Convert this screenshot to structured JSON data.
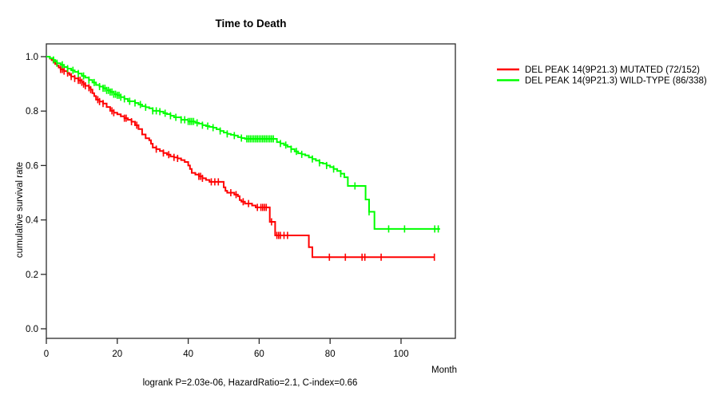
{
  "title": "Time to Death",
  "footer": "logrank P=2.03e-06, HazardRatio=2.1, C-index=0.66",
  "axes": {
    "y_label": "cumulative survival rate",
    "x_label": "Month",
    "y_tick_labels": [
      "1.0",
      "0.8",
      "0.6",
      "0.4",
      "0.2",
      "0.0"
    ],
    "x_tick_labels": [
      "0",
      "20",
      "40",
      "60",
      "80",
      "100"
    ]
  },
  "chart_data": {
    "type": "line",
    "subtype": "kaplan-meier-step",
    "title": "Time to Death",
    "xlabel": "Month",
    "ylabel": "cumulative survival rate",
    "xlim": [
      0,
      115
    ],
    "ylim": [
      0.0,
      1.0
    ],
    "x_ticks": [
      0,
      20,
      40,
      60,
      80,
      100
    ],
    "y_ticks": [
      0.0,
      0.2,
      0.4,
      0.6,
      0.8,
      1.0
    ],
    "grid": false,
    "legend_position": "outside-right",
    "annotation": "logrank P=2.03e-06, HazardRatio=2.1, C-index=0.66",
    "series": [
      {
        "id": "mutated",
        "name": "DEL PEAK 14(9P21.3) MUTATED (72/152)",
        "color": "#ff0000",
        "events": "72/152",
        "end_month": 109.5,
        "steps": [
          [
            0,
            1.0
          ],
          [
            1,
            0.993
          ],
          [
            1.5,
            0.987
          ],
          [
            2,
            0.98
          ],
          [
            2.5,
            0.973
          ],
          [
            3,
            0.967
          ],
          [
            3.5,
            0.96
          ],
          [
            4,
            0.953
          ],
          [
            5,
            0.947
          ],
          [
            6,
            0.94
          ],
          [
            6.5,
            0.933
          ],
          [
            7,
            0.927
          ],
          [
            8,
            0.92
          ],
          [
            9,
            0.913
          ],
          [
            10,
            0.906
          ],
          [
            10.5,
            0.899
          ],
          [
            11,
            0.893
          ],
          [
            12,
            0.886
          ],
          [
            12.5,
            0.879
          ],
          [
            13,
            0.866
          ],
          [
            13.5,
            0.855
          ],
          [
            14,
            0.842
          ],
          [
            15,
            0.835
          ],
          [
            16,
            0.828
          ],
          [
            17,
            0.815
          ],
          [
            18,
            0.801
          ],
          [
            19,
            0.794
          ],
          [
            20,
            0.788
          ],
          [
            21,
            0.781
          ],
          [
            22,
            0.774
          ],
          [
            23,
            0.768
          ],
          [
            24,
            0.761
          ],
          [
            25,
            0.748
          ],
          [
            26,
            0.734
          ],
          [
            27,
            0.714
          ],
          [
            28,
            0.7
          ],
          [
            29,
            0.693
          ],
          [
            29.5,
            0.68
          ],
          [
            30,
            0.666
          ],
          [
            31,
            0.66
          ],
          [
            32,
            0.653
          ],
          [
            33,
            0.646
          ],
          [
            34,
            0.64
          ],
          [
            35,
            0.633
          ],
          [
            36,
            0.63
          ],
          [
            37,
            0.626
          ],
          [
            38,
            0.62
          ],
          [
            39,
            0.613
          ],
          [
            40,
            0.6
          ],
          [
            40.5,
            0.587
          ],
          [
            41,
            0.573
          ],
          [
            42,
            0.567
          ],
          [
            43,
            0.56
          ],
          [
            44,
            0.553
          ],
          [
            45,
            0.547
          ],
          [
            46,
            0.54
          ],
          [
            50,
            0.52
          ],
          [
            50.5,
            0.507
          ],
          [
            51,
            0.5
          ],
          [
            53,
            0.493
          ],
          [
            54,
            0.487
          ],
          [
            54.5,
            0.473
          ],
          [
            55,
            0.467
          ],
          [
            56,
            0.46
          ],
          [
            58,
            0.453
          ],
          [
            59,
            0.446
          ],
          [
            63,
            0.393
          ],
          [
            64.5,
            0.343
          ],
          [
            74,
            0.3
          ],
          [
            75,
            0.263
          ]
        ],
        "censor_months": [
          4,
          4.5,
          5,
          6,
          7,
          8,
          9,
          9.5,
          10,
          10.5,
          11,
          12,
          12.5,
          14.5,
          15,
          16,
          18.5,
          19,
          22,
          22.5,
          24,
          25.5,
          31,
          33,
          34.5,
          36,
          37,
          43,
          43.5,
          44,
          46.5,
          47.5,
          48.5,
          52,
          53.5,
          55.5,
          57,
          59.5,
          60.5,
          61,
          61.5,
          62,
          63.5,
          65,
          65.5,
          66,
          67,
          68,
          79.8,
          84.3,
          89,
          89.8,
          94.4,
          109.4
        ]
      },
      {
        "id": "wild-type",
        "name": "DEL PEAK 14(9P21.3) WILD-TYPE (86/338)",
        "color": "#00ff00",
        "events": "86/338",
        "end_month": 111,
        "steps": [
          [
            0,
            1.0
          ],
          [
            1,
            0.994
          ],
          [
            2,
            0.988
          ],
          [
            2.5,
            0.982
          ],
          [
            3,
            0.976
          ],
          [
            4,
            0.97
          ],
          [
            5,
            0.962
          ],
          [
            6,
            0.956
          ],
          [
            7,
            0.95
          ],
          [
            8,
            0.944
          ],
          [
            9,
            0.938
          ],
          [
            10,
            0.929
          ],
          [
            11,
            0.923
          ],
          [
            12,
            0.914
          ],
          [
            13,
            0.905
          ],
          [
            14,
            0.896
          ],
          [
            15,
            0.89
          ],
          [
            16,
            0.884
          ],
          [
            17,
            0.876
          ],
          [
            18,
            0.87
          ],
          [
            19,
            0.862
          ],
          [
            20,
            0.858
          ],
          [
            21,
            0.851
          ],
          [
            22,
            0.845
          ],
          [
            23,
            0.836
          ],
          [
            25,
            0.83
          ],
          [
            26,
            0.824
          ],
          [
            27,
            0.818
          ],
          [
            28,
            0.814
          ],
          [
            29,
            0.81
          ],
          [
            30,
            0.801
          ],
          [
            32,
            0.798
          ],
          [
            33,
            0.792
          ],
          [
            34,
            0.789
          ],
          [
            35,
            0.783
          ],
          [
            36,
            0.777
          ],
          [
            38,
            0.768
          ],
          [
            40,
            0.762
          ],
          [
            42,
            0.757
          ],
          [
            43,
            0.754
          ],
          [
            44,
            0.748
          ],
          [
            45,
            0.745
          ],
          [
            46,
            0.742
          ],
          [
            47,
            0.739
          ],
          [
            48,
            0.733
          ],
          [
            49,
            0.727
          ],
          [
            50,
            0.721
          ],
          [
            51,
            0.716
          ],
          [
            52,
            0.713
          ],
          [
            53,
            0.71
          ],
          [
            54,
            0.704
          ],
          [
            55,
            0.701
          ],
          [
            56,
            0.698
          ],
          [
            65,
            0.686
          ],
          [
            66,
            0.681
          ],
          [
            67,
            0.675
          ],
          [
            68,
            0.669
          ],
          [
            69,
            0.66
          ],
          [
            70,
            0.652
          ],
          [
            71,
            0.645
          ],
          [
            72,
            0.641
          ],
          [
            73,
            0.637
          ],
          [
            74,
            0.63
          ],
          [
            75,
            0.624
          ],
          [
            76,
            0.618
          ],
          [
            77,
            0.61
          ],
          [
            78,
            0.607
          ],
          [
            79,
            0.6
          ],
          [
            80,
            0.594
          ],
          [
            81,
            0.587
          ],
          [
            82,
            0.58
          ],
          [
            83,
            0.57
          ],
          [
            84,
            0.557
          ],
          [
            85,
            0.525
          ],
          [
            90,
            0.475
          ],
          [
            91,
            0.43
          ],
          [
            92.5,
            0.367
          ]
        ],
        "censor_months": [
          2,
          3,
          4.5,
          6,
          7.5,
          9,
          10.5,
          12,
          13.5,
          15,
          16,
          16.5,
          17,
          17.5,
          18,
          18.5,
          19,
          19.5,
          20,
          20.5,
          21,
          22,
          23.5,
          25,
          26.5,
          28,
          30,
          31,
          32,
          33.5,
          35,
          36.5,
          38,
          39,
          40,
          40.5,
          41,
          41.5,
          42.5,
          44,
          45.5,
          47,
          49,
          51,
          53,
          55,
          56.5,
          57,
          57.5,
          58,
          58.5,
          59,
          59.5,
          60,
          60.5,
          61,
          61.5,
          62,
          62.5,
          63,
          63.5,
          64,
          66,
          67.5,
          69,
          70.5,
          72,
          75,
          77,
          79,
          81,
          83,
          87,
          91,
          96.5,
          101,
          109.5,
          110.5
        ]
      }
    ]
  }
}
